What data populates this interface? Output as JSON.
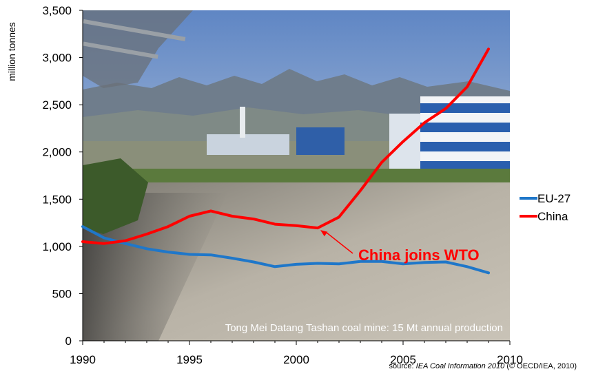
{
  "chart_data": {
    "type": "line",
    "ylabel": "million tonnes",
    "xlim": [
      1990,
      2010
    ],
    "ylim": [
      0,
      3500
    ],
    "x_ticks": [
      "1990",
      "1995",
      "2000",
      "2005",
      "2010"
    ],
    "y_ticks": [
      "0",
      "500",
      "1,000",
      "1,500",
      "2,000",
      "2,500",
      "3,000",
      "3,500"
    ],
    "x": [
      1990,
      1991,
      1992,
      1993,
      1994,
      1995,
      1996,
      1997,
      1998,
      1999,
      2000,
      2001,
      2002,
      2003,
      2004,
      2005,
      2006,
      2007,
      2008,
      2009
    ],
    "series": [
      {
        "name": "EU-27",
        "color": "#1f77c9",
        "values": [
          1210,
          1090,
          1030,
          975,
          940,
          915,
          910,
          875,
          835,
          785,
          810,
          820,
          815,
          840,
          840,
          815,
          830,
          835,
          785,
          720
        ]
      },
      {
        "name": "China",
        "color": "#ff0000",
        "values": [
          1050,
          1030,
          1060,
          1130,
          1210,
          1320,
          1375,
          1320,
          1290,
          1235,
          1220,
          1195,
          1310,
          1590,
          1890,
          2110,
          2310,
          2460,
          2690,
          3090
        ]
      }
    ],
    "legend_position": "right",
    "annotation": {
      "text": "China joins WTO",
      "x": 2001,
      "y": 1195,
      "color": "#ff0000"
    },
    "background_caption": "Tong Mei Datang Tashan coal mine: 15 Mt annual production",
    "grid": false
  },
  "source": {
    "prefix": "source: ",
    "title": "IEA Coal Information 2010",
    "suffix": " (© OECD/IEA, 2010)"
  }
}
